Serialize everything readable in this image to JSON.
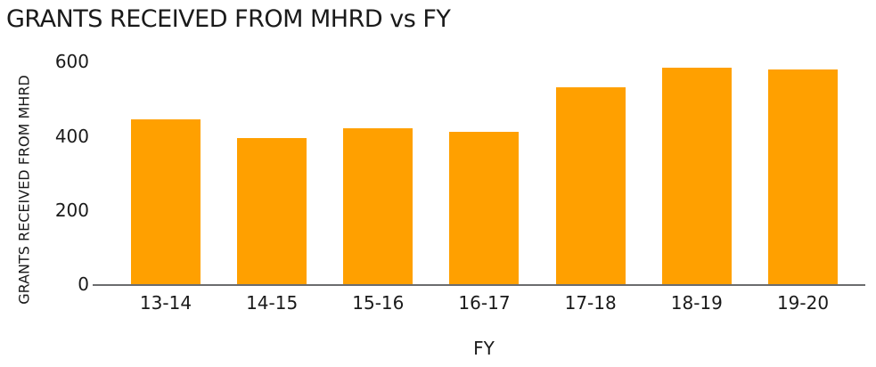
{
  "chart_data": {
    "type": "bar",
    "title": "GRANTS RECEIVED FROM MHRD vs FY",
    "xlabel": "FY",
    "ylabel": "GRANTS RECEIVED FROM MHRD",
    "categories": [
      "13-14",
      "14-15",
      "15-16",
      "16-17",
      "17-18",
      "18-19",
      "19-20"
    ],
    "values": [
      445,
      395,
      420,
      410,
      530,
      585,
      580
    ],
    "yticks": [
      0,
      200,
      400,
      600
    ],
    "ylim": [
      0,
      600
    ],
    "grid": false,
    "legend": false,
    "bar_color": "#FFA000",
    "axis_line_color": "#6b6c6e",
    "text_color": "#1a1a1a"
  }
}
